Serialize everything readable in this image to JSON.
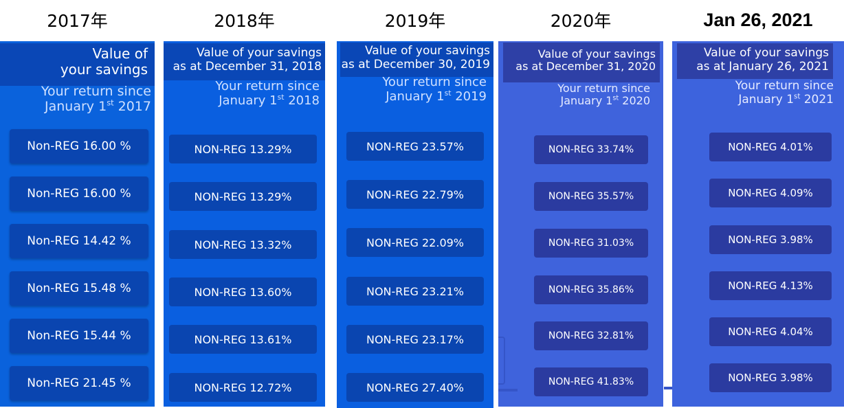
{
  "columns": [
    {
      "title": "2017年",
      "value_label": "Value of your savings",
      "value_line1": "Value of",
      "value_line2": "your savings",
      "return_line1": "Your return since",
      "return_line2": "January 1",
      "return_sup": "st",
      "return_year": " 2017",
      "returns": [
        "Non-REG 16.00 %",
        "Non-REG 16.00 %",
        "Non-REG 14.42 %",
        "Non-REG 15.48 %",
        "Non-REG 15.44 %",
        "Non-REG 21.45 %"
      ]
    },
    {
      "title": "2018年",
      "value_line1": "Value of your savings",
      "value_line2": "as at December 31, 2018",
      "return_line1": "Your return since",
      "return_line2": "January 1",
      "return_sup": "st",
      "return_year": " 2018",
      "returns": [
        "NON-REG 13.29%",
        "NON-REG 13.29%",
        "NON-REG 13.32%",
        "NON-REG 13.60%",
        "NON-REG 13.61%",
        "NON-REG 12.72%"
      ]
    },
    {
      "title": "2019年",
      "value_line1": "Value of your savings",
      "value_line2": "as at December 30, 2019",
      "return_line1": "Your return since",
      "return_line2": "January 1",
      "return_sup": "st",
      "return_year": " 2019",
      "returns": [
        "NON-REG 23.57%",
        "NON-REG 22.79%",
        "NON-REG 22.09%",
        "NON-REG 23.21%",
        "NON-REG 23.17%",
        "NON-REG 27.40%"
      ]
    },
    {
      "title": "2020年",
      "value_line1": "Value of your savings",
      "value_line2": "as at December 31, 2020",
      "return_line1": "Your return since",
      "return_line2": "January 1",
      "return_sup": "st",
      "return_year": " 2020",
      "returns": [
        "NON-REG 33.74%",
        "NON-REG 35.57%",
        "NON-REG 31.03%",
        "NON-REG 35.86%",
        "NON-REG 32.81%",
        "NON-REG 41.83%"
      ]
    },
    {
      "title": "Jan 26, 2021",
      "value_line1": "Value of your savings",
      "value_line2": "as at January 26, 2021",
      "return_line1": "Your return since",
      "return_line2": "January 1",
      "return_sup": "st",
      "return_year": " 2021",
      "returns": [
        "NON-REG 4.01%",
        "NON-REG 4.09%",
        "NON-REG 3.98%",
        "NON-REG 4.13%",
        "NON-REG 4.04%",
        "NON-REG 3.98%"
      ]
    }
  ],
  "colors": {
    "panel_2017": "#0a62dc",
    "panel_2018": "#0a5fe0",
    "panel_2019": "#0a5fe0",
    "panel_2020": "#3f63dc",
    "panel_2021": "#3d63dd",
    "header_dark": "#0a47b6",
    "header_dark_2020": "#2e40a6",
    "pill_2017_2019": "#0a45b0",
    "pill_2020_2021": "#2b3ba0",
    "sub_text_2017_2019": "#cfe0ff",
    "sub_text_2020_2021": "#e6ebff"
  }
}
